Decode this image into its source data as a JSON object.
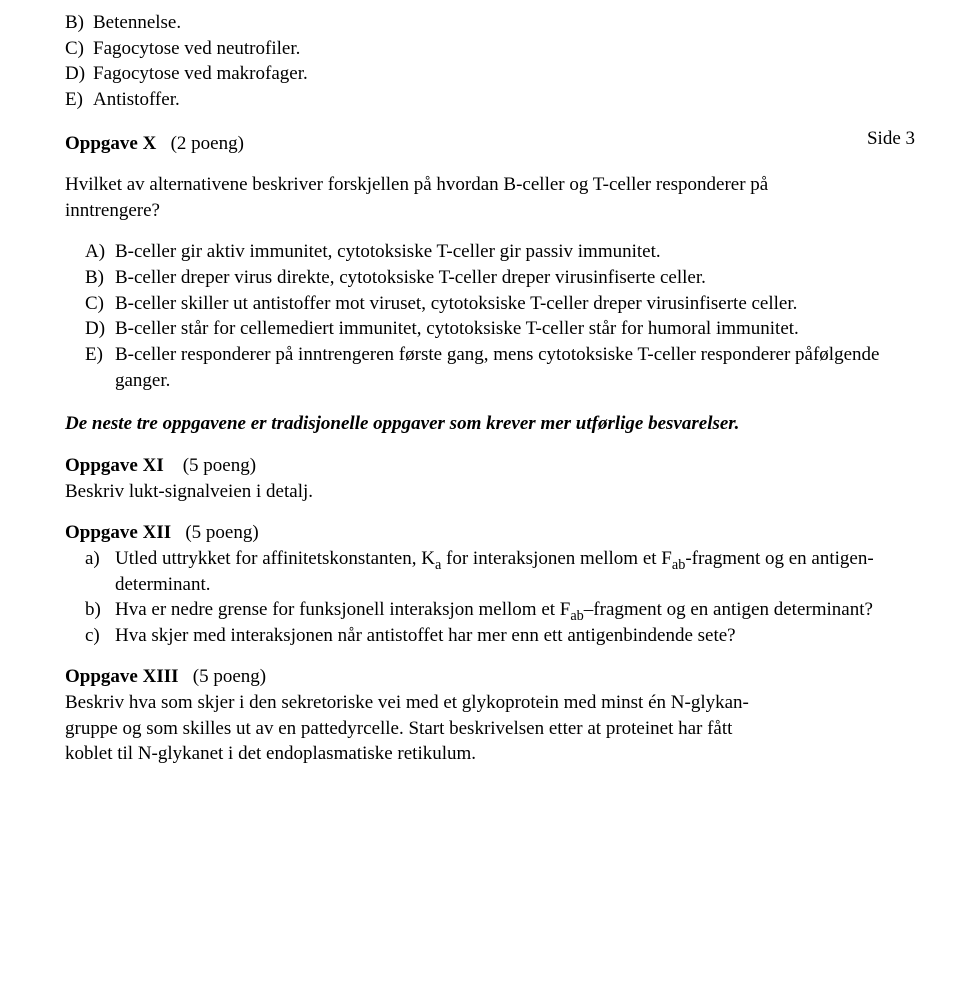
{
  "page_label": "Side 3",
  "q_prev_choices": [
    {
      "letter": "B)",
      "text": "Betennelse."
    },
    {
      "letter": "C)",
      "text": "Fagocytose ved neutrofiler."
    },
    {
      "letter": "D)",
      "text": "Fagocytose ved makrofager."
    },
    {
      "letter": "E)",
      "text": "Antistoffer."
    }
  ],
  "qx": {
    "title": "Oppgave X",
    "points": "(2 poeng)",
    "stem_a": "Hvilket av alternativene beskriver forskjellen på hvordan B-celler og T-celler responderer på",
    "stem_b": "inntrengere?",
    "choices": [
      {
        "letter": "A)",
        "text": "B-celler gir aktiv immunitet, cytotoksiske T-celler gir passiv immunitet."
      },
      {
        "letter": "B)",
        "text": "B-celler dreper virus direkte, cytotoksiske T-celler dreper virusinfiserte celler."
      },
      {
        "letter": "C)",
        "text": "B-celler skiller ut antistoffer mot viruset, cytotoksiske T-celler dreper virusinfiserte celler."
      },
      {
        "letter": "D)",
        "text": "B-celler står for cellemediert immunitet, cytotoksiske T-celler står for humoral immunitet."
      },
      {
        "letter": "E)",
        "text": "B-celler responderer på inntrengeren første gang, mens cytotoksiske T-celler responderer påfølgende ganger."
      }
    ]
  },
  "transition_note": "De neste tre oppgavene er tradisjonelle oppgaver som krever mer utførlige besvarelser.",
  "qxi": {
    "title": "Oppgave XI",
    "points": "(5 poeng)",
    "body": "Beskriv lukt-signalveien i detalj."
  },
  "qxii": {
    "title": "Oppgave XII",
    "points": "(5 poeng)",
    "parts": [
      {
        "letter": "a)",
        "pre": "Utled uttrykket for affinitetskonstanten, K",
        "sub1": "a",
        "mid": " for interaksjonen mellom et F",
        "sub2": "ab",
        "post": "-fragment og en antigen-determinant."
      },
      {
        "letter": "b)",
        "pre": "Hva er nedre grense for funksjonell interaksjon mellom et F",
        "sub1": "ab",
        "mid": "–fragment og en antigen determinant?",
        "sub2": "",
        "post": ""
      },
      {
        "letter": "c)",
        "pre": "Hva skjer med interaksjonen når antistoffet har mer enn ett antigenbindende sete?",
        "sub1": "",
        "mid": "",
        "sub2": "",
        "post": ""
      }
    ]
  },
  "qxiii": {
    "title": "Oppgave XIII",
    "points": "(5 poeng)",
    "body_a": "Beskriv hva som skjer i den sekretoriske vei med et glykoprotein med minst én N-glykan-",
    "body_b": "gruppe og som skilles ut av en pattedyrcelle. Start beskrivelsen etter at proteinet har fått",
    "body_c": "koblet til N-glykanet i det endoplasmatiske retikulum."
  }
}
